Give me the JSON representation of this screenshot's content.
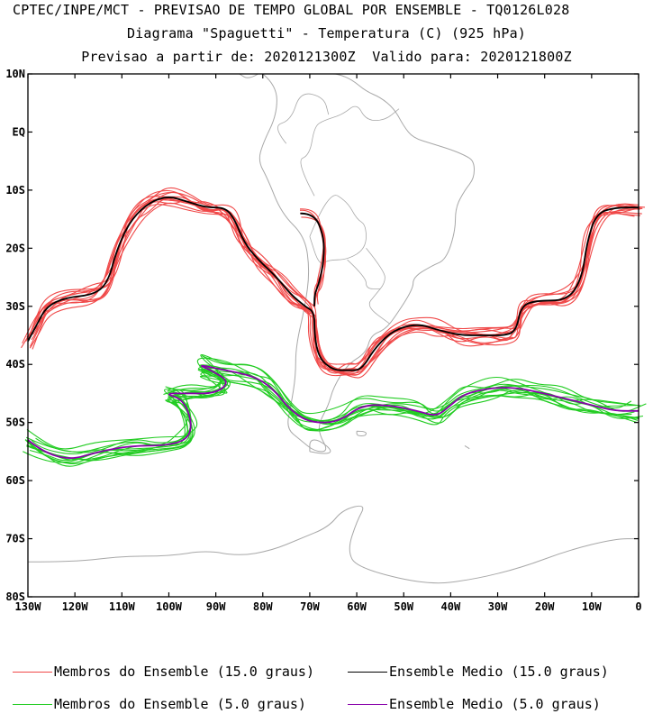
{
  "header": {
    "line1": "CPTEC/INPE/MCT - PREVISAO DE TEMPO GLOBAL POR ENSEMBLE - TQ0126L028",
    "line2": "Diagrama \"Spaguetti\" - Temperatura (C) (925 hPa)",
    "line3": "Previsao a partir de: 2020121300Z  Valido para: 2020121800Z"
  },
  "axes": {
    "lat_labels": [
      "10N",
      "EQ",
      "10S",
      "20S",
      "30S",
      "40S",
      "50S",
      "60S",
      "70S",
      "80S"
    ],
    "lon_labels": [
      "130W",
      "120W",
      "110W",
      "100W",
      "90W",
      "80W",
      "70W",
      "60W",
      "50W",
      "40W",
      "30W",
      "20W",
      "10W",
      "0"
    ],
    "lat_range": [
      10,
      -80
    ],
    "lon_range": [
      -130,
      0
    ]
  },
  "colors": {
    "red_members": "#f04848",
    "black_mean": "#000000",
    "green_members": "#22cc22",
    "purple_mean": "#8800aa",
    "coast": "#a8a8a8"
  },
  "legend": {
    "red_members": "Membros do Ensemble (15.0 graus)",
    "black_mean": "Ensemble Medio (15.0 graus)",
    "green_members": "Membros do Ensemble (5.0 graus)",
    "purple_mean": "Ensemble Medio (5.0 graus)"
  },
  "contours": {
    "mean_15": [
      [
        -130,
        -36
      ],
      [
        -128,
        -33
      ],
      [
        -126,
        -30
      ],
      [
        -122,
        -28.5
      ],
      [
        -116,
        -28
      ],
      [
        -113,
        -26
      ],
      [
        -111,
        -20
      ],
      [
        -108,
        -15
      ],
      [
        -104,
        -12
      ],
      [
        -100,
        -11
      ],
      [
        -96,
        -12
      ],
      [
        -92,
        -13
      ],
      [
        -88,
        -13
      ],
      [
        -86,
        -15
      ],
      [
        -84,
        -19
      ],
      [
        -81,
        -22
      ],
      [
        -77,
        -25
      ],
      [
        -74,
        -28
      ],
      [
        -71,
        -30
      ],
      [
        -69,
        -31
      ],
      [
        -69,
        -35
      ],
      [
        -68,
        -39
      ],
      [
        -65,
        -41
      ],
      [
        -62,
        -41
      ],
      [
        -59,
        -41
      ],
      [
        -56,
        -37
      ],
      [
        -52,
        -34
      ],
      [
        -47,
        -33
      ],
      [
        -43,
        -34
      ],
      [
        -38,
        -35
      ],
      [
        -33,
        -35
      ],
      [
        -28,
        -35
      ],
      [
        -26,
        -34
      ],
      [
        -25,
        -30
      ],
      [
        -22,
        -29
      ],
      [
        -15,
        -29
      ],
      [
        -12,
        -25
      ],
      [
        -11,
        -19
      ],
      [
        -9,
        -14
      ],
      [
        -5,
        -13
      ],
      [
        0,
        -13
      ]
    ],
    "mean_15_andes": [
      [
        -72,
        -14
      ],
      [
        -69,
        -14
      ],
      [
        -67,
        -18
      ],
      [
        -67,
        -22
      ],
      [
        -68,
        -26
      ],
      [
        -69,
        -28
      ],
      [
        -69,
        -30
      ]
    ],
    "mean_5": [
      [
        -130,
        -53
      ],
      [
        -127,
        -55
      ],
      [
        -121,
        -56.5
      ],
      [
        -115,
        -55
      ],
      [
        -108,
        -54
      ],
      [
        -101,
        -54
      ],
      [
        -96,
        -53
      ],
      [
        -95,
        -50
      ],
      [
        -97,
        -46
      ],
      [
        -101,
        -45
      ],
      [
        -96,
        -45
      ],
      [
        -90,
        -45
      ],
      [
        -87,
        -43
      ],
      [
        -91,
        -41
      ],
      [
        -94,
        -40
      ],
      [
        -88,
        -41
      ],
      [
        -82,
        -42
      ],
      [
        -78,
        -44
      ],
      [
        -74,
        -48
      ],
      [
        -70,
        -50
      ],
      [
        -64,
        -50
      ],
      [
        -59,
        -47
      ],
      [
        -53,
        -47
      ],
      [
        -47,
        -48
      ],
      [
        -43,
        -49
      ],
      [
        -40,
        -47
      ],
      [
        -37,
        -45
      ],
      [
        -31,
        -44
      ],
      [
        -26,
        -44
      ],
      [
        -20,
        -45
      ],
      [
        -15,
        -46
      ],
      [
        -10,
        -47
      ],
      [
        -5,
        -48
      ],
      [
        0,
        -48
      ]
    ]
  }
}
